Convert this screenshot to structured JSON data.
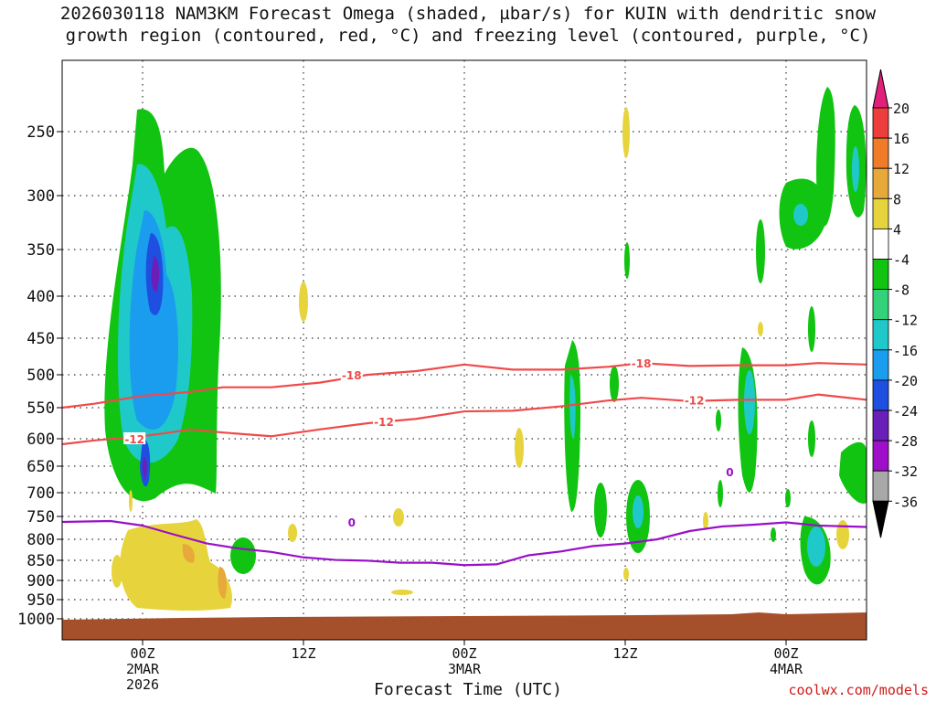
{
  "chart_data": {
    "type": "heatmap",
    "title_line1": "2026030118 NAM3KM Forecast Omega (shaded, µbar/s) for KUIN with dendritic snow",
    "title_line2": "growth region (contoured, red, °C) and freezing level (contoured, purple, °C)",
    "xlabel": "Forecast Time (UTC)",
    "credit": "coolwx.com/models",
    "x_range_hours": [
      -5,
      45
    ],
    "y_range_hpa": [
      1000,
      200
    ],
    "y_ticks": [
      "250",
      "300",
      "350",
      "400",
      "450",
      "500",
      "550",
      "600",
      "650",
      "700",
      "750",
      "800",
      "850",
      "900",
      "950",
      "1000"
    ],
    "x_ticks": [
      {
        "hour": 0,
        "lines": [
          "00Z",
          "2MAR",
          "2026"
        ]
      },
      {
        "hour": 10,
        "lines": [
          "12Z"
        ]
      },
      {
        "hour": 20,
        "lines": [
          "00Z",
          "3MAR"
        ]
      },
      {
        "hour": 30,
        "lines": [
          "12Z"
        ]
      },
      {
        "hour": 40,
        "lines": [
          "00Z",
          "4MAR"
        ]
      }
    ],
    "colorbar": {
      "labels": [
        "20",
        "16",
        "12",
        "8",
        "4",
        "-4",
        "-8",
        "-12",
        "-16",
        "-20",
        "-24",
        "-28",
        "-32",
        "-36"
      ],
      "colors": [
        "#ee3d3d",
        "#f07c2a",
        "#e6a93a",
        "#e7d43c",
        "#ffffff",
        "#11c411",
        "#33d17a",
        "#1fc9c9",
        "#1a9cef",
        "#1f4fe0",
        "#6b1fb9",
        "#9f0fc9",
        "#a8a8a8"
      ],
      "top_color": "#e0207a",
      "bottom_color": "#000000"
    },
    "contours": [
      {
        "label": "-18",
        "color": "#ef4a4a",
        "points": [
          [
            -5,
            550
          ],
          [
            -3,
            544
          ],
          [
            0,
            532
          ],
          [
            3,
            526
          ],
          [
            5,
            519
          ],
          [
            8,
            519
          ],
          [
            11,
            512
          ],
          [
            14,
            500
          ],
          [
            17,
            495
          ],
          [
            20,
            486
          ],
          [
            23,
            493
          ],
          [
            26,
            493
          ],
          [
            29,
            489
          ],
          [
            31,
            484
          ],
          [
            34,
            488
          ],
          [
            37,
            487
          ],
          [
            40,
            487
          ],
          [
            42,
            484
          ],
          [
            45,
            486
          ]
        ],
        "label_at": [
          [
            13,
            500
          ],
          [
            31,
            484
          ]
        ]
      },
      {
        "label": "-12",
        "color": "#ef4a4a",
        "points": [
          [
            -5,
            610
          ],
          [
            -3,
            603
          ],
          [
            0,
            596
          ],
          [
            3,
            585
          ],
          [
            5,
            590
          ],
          [
            8,
            596
          ],
          [
            11,
            585
          ],
          [
            14,
            575
          ],
          [
            17,
            568
          ],
          [
            20,
            556
          ],
          [
            23,
            555
          ],
          [
            26,
            548
          ],
          [
            29,
            539
          ],
          [
            31,
            535
          ],
          [
            34,
            540
          ],
          [
            37,
            538
          ],
          [
            40,
            538
          ],
          [
            42,
            530
          ],
          [
            45,
            538
          ]
        ],
        "label_at": [
          [
            -0.5,
            600
          ],
          [
            15,
            572
          ],
          [
            34.3,
            538
          ]
        ]
      },
      {
        "label": "0",
        "color": "#9a10c8",
        "points": [
          [
            -5,
            762
          ],
          [
            -2,
            760
          ],
          [
            0,
            770
          ],
          [
            2,
            790
          ],
          [
            4,
            810
          ],
          [
            6,
            822
          ],
          [
            8,
            830
          ],
          [
            10,
            843
          ],
          [
            12,
            849
          ],
          [
            14,
            851
          ],
          [
            16,
            856
          ],
          [
            18,
            856
          ],
          [
            20,
            862
          ],
          [
            22,
            860
          ],
          [
            24,
            838
          ],
          [
            26,
            829
          ],
          [
            28,
            816
          ],
          [
            30,
            810
          ],
          [
            32,
            800
          ],
          [
            34,
            782
          ],
          [
            36,
            772
          ],
          [
            38,
            768
          ],
          [
            40,
            763
          ],
          [
            42,
            770
          ],
          [
            45,
            773
          ]
        ],
        "label_at": [
          [
            13,
            762
          ],
          [
            36.5,
            660
          ]
        ]
      }
    ]
  }
}
